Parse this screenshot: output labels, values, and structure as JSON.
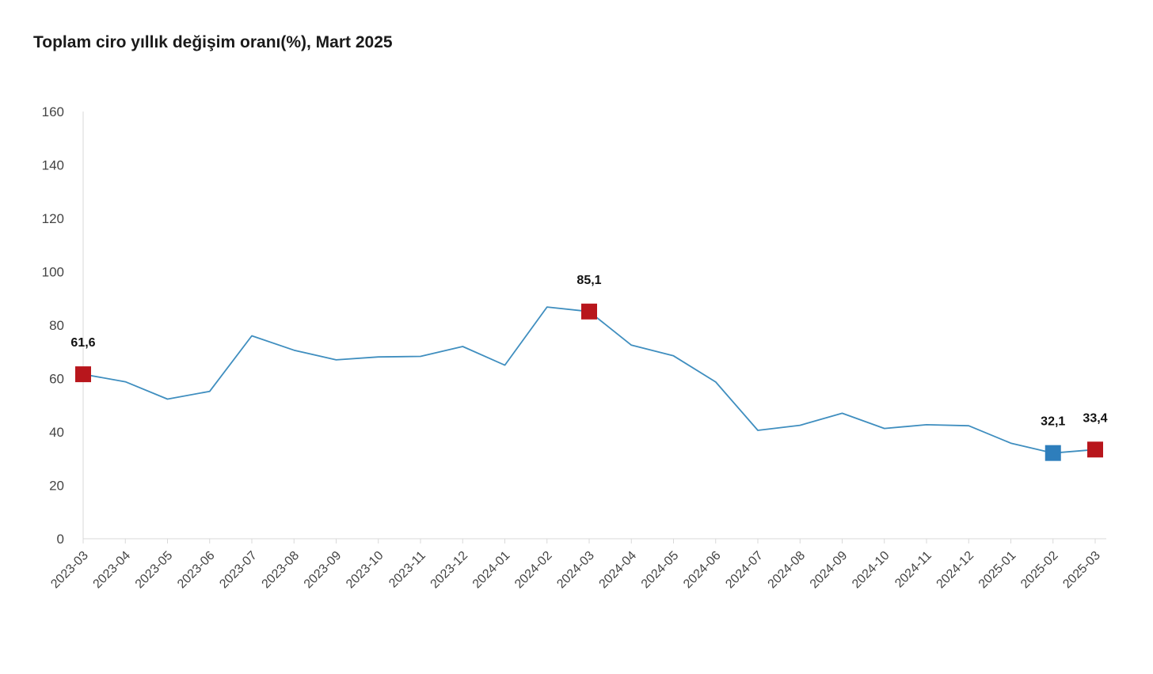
{
  "chart_data": {
    "type": "line",
    "title": "Toplam ciro yıllık değişim oranı(%), Mart 2025",
    "xlabel": "",
    "ylabel": "",
    "ylim": [
      0,
      160
    ],
    "yticks": [
      0,
      20,
      40,
      60,
      80,
      100,
      120,
      140,
      160
    ],
    "grid": false,
    "categories": [
      "2023-03",
      "2023-04",
      "2023-05",
      "2023-06",
      "2023-07",
      "2023-08",
      "2023-09",
      "2023-10",
      "2023-11",
      "2023-12",
      "2024-01",
      "2024-02",
      "2024-03",
      "2024-04",
      "2024-05",
      "2024-06",
      "2024-07",
      "2024-08",
      "2024-09",
      "2024-10",
      "2024-11",
      "2024-12",
      "2025-01",
      "2025-02",
      "2025-03"
    ],
    "series": [
      {
        "values": [
          61.6,
          58.8,
          52.3,
          55.2,
          76.0,
          70.6,
          67.0,
          68.1,
          68.3,
          72.0,
          65.0,
          86.8,
          85.1,
          72.5,
          68.5,
          58.7,
          40.6,
          42.5,
          47.0,
          41.3,
          42.7,
          42.3,
          35.8,
          32.1,
          33.4
        ],
        "color": "#3f8ebf"
      }
    ],
    "highlights": [
      {
        "index": 0,
        "label": "61,6",
        "color": "#b8161c"
      },
      {
        "index": 12,
        "label": "85,1",
        "color": "#b8161c"
      },
      {
        "index": 23,
        "label": "32,1",
        "color": "#2e7ebc"
      },
      {
        "index": 24,
        "label": "33,4",
        "color": "#b8161c"
      }
    ],
    "axis_color": "#d9d9d9"
  }
}
